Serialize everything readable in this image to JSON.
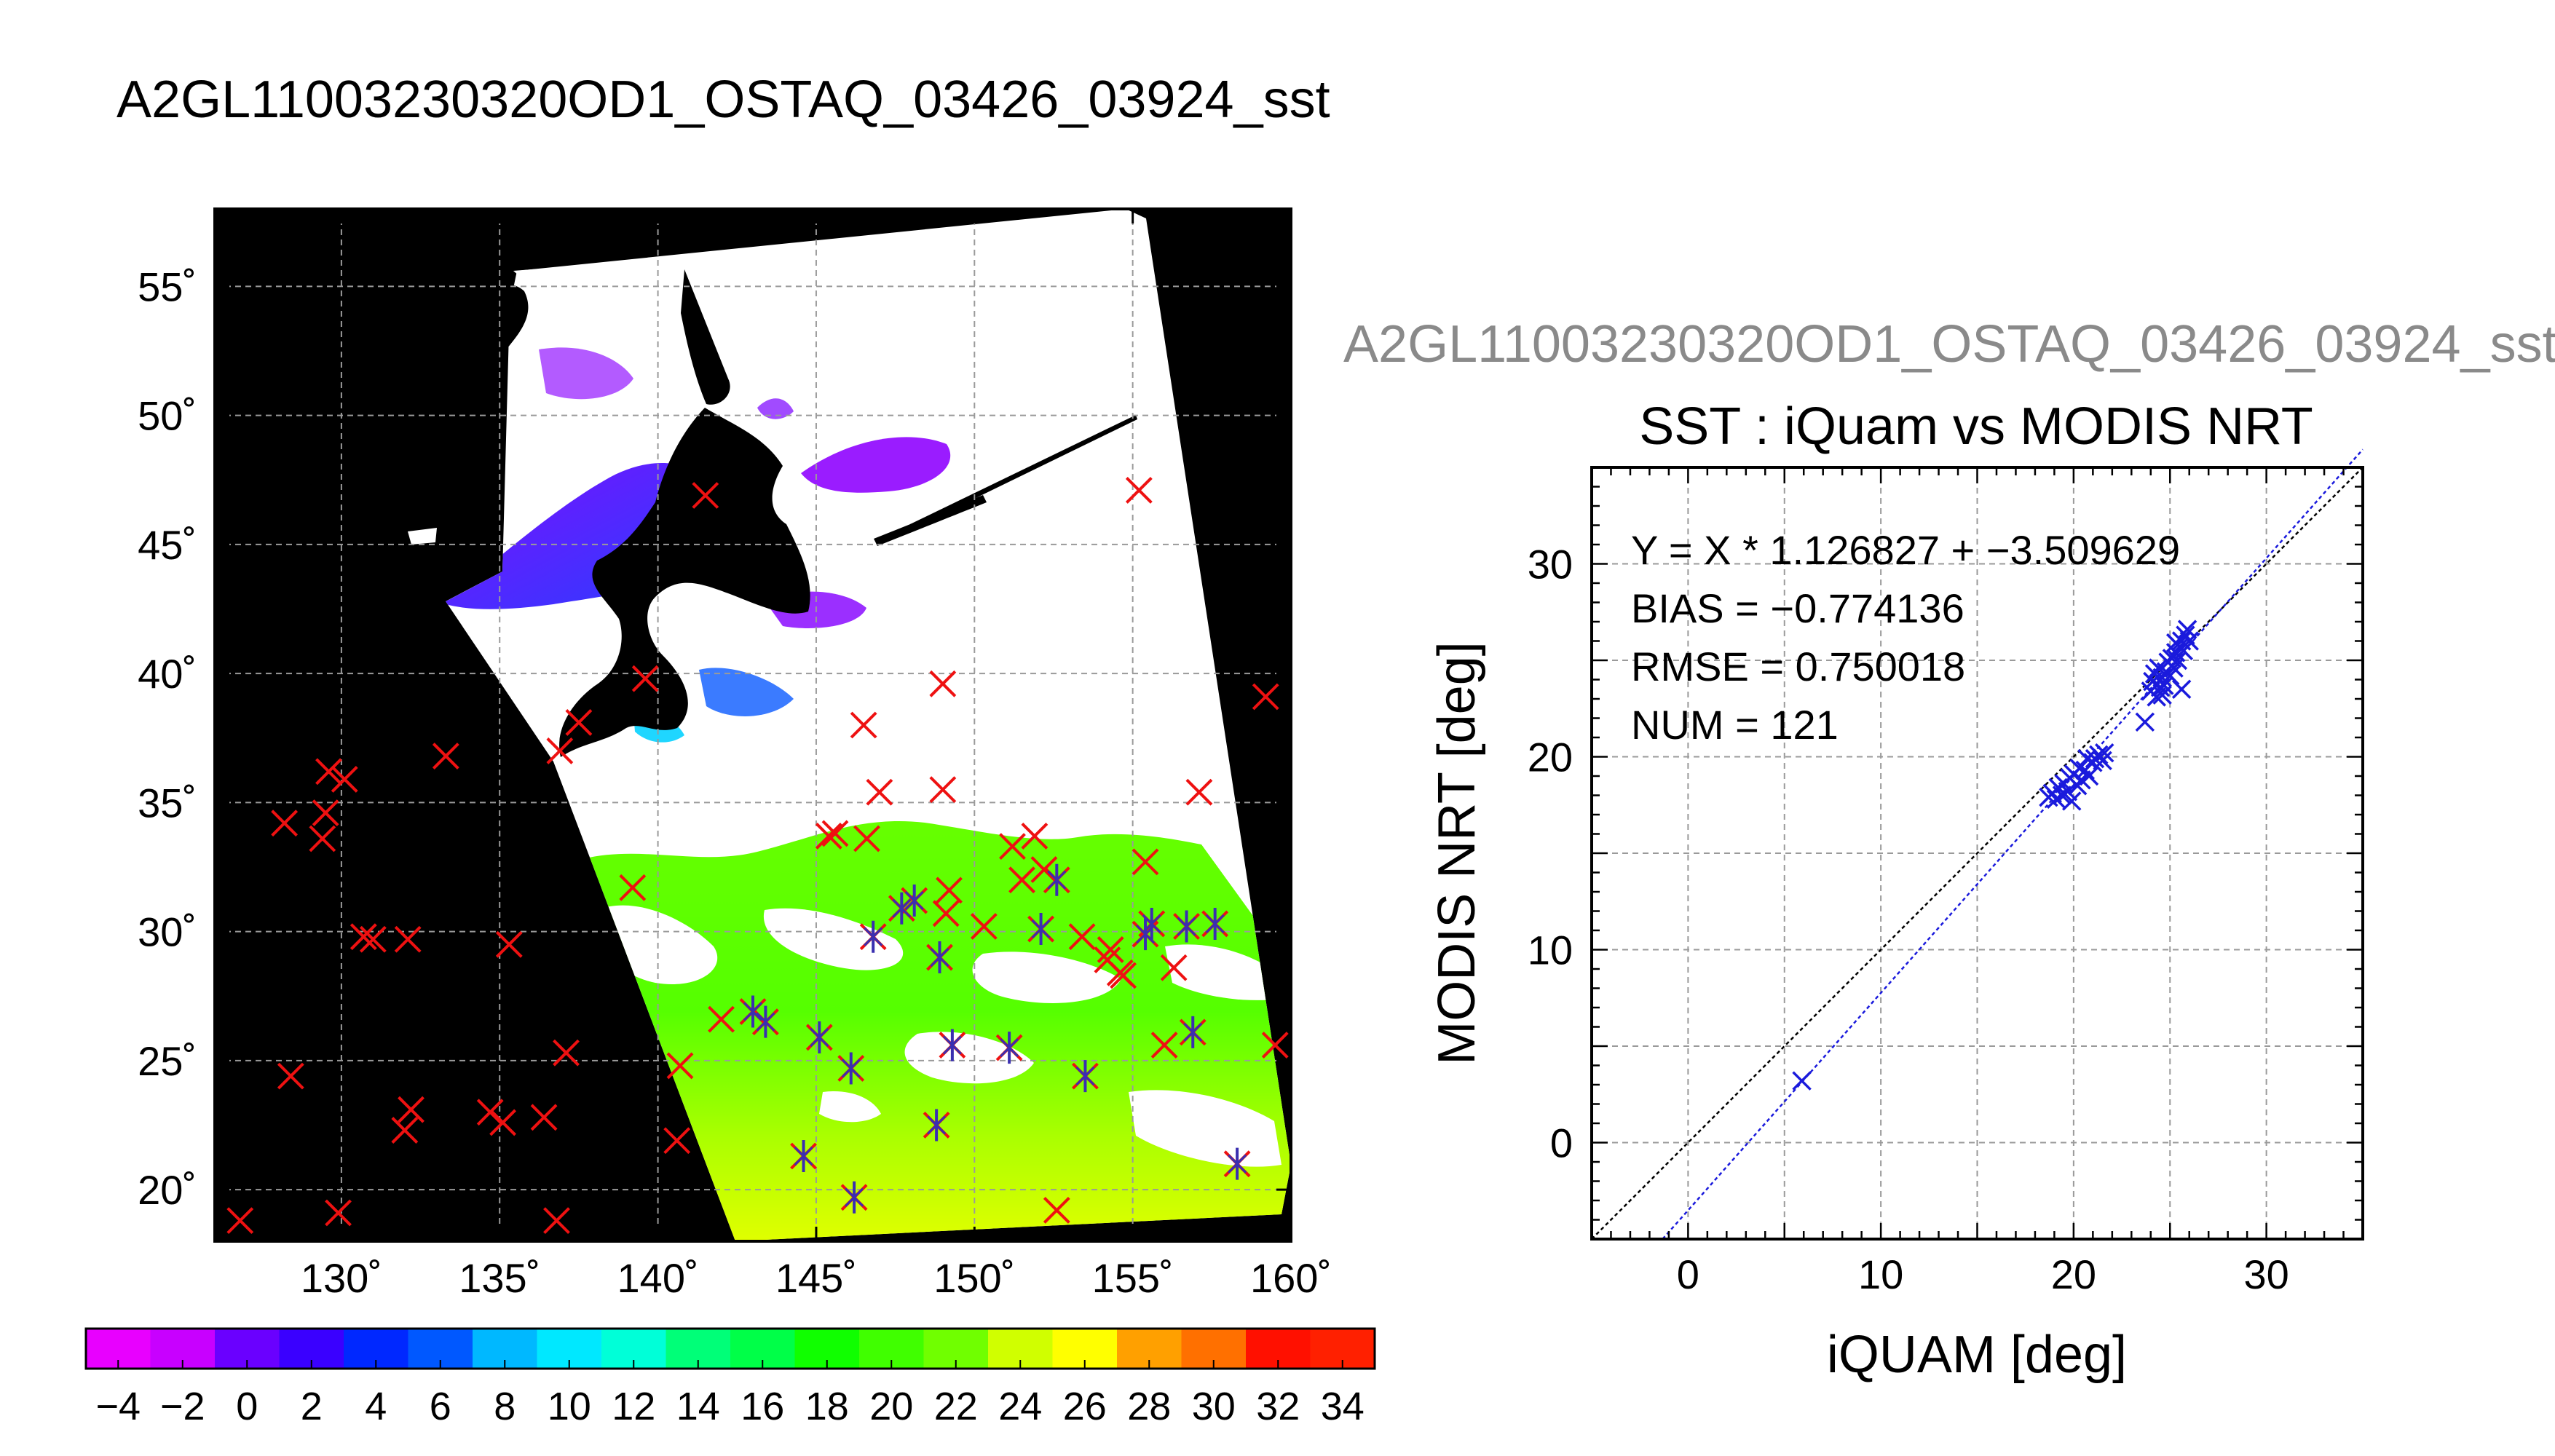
{
  "page_title": "A2GL11003230320OD1_OSTAQ_03426_03924_sst",
  "chart_data": [
    {
      "type": "map",
      "title": "",
      "xlim": [
        126,
        160
      ],
      "ylim": [
        18,
        58
      ],
      "x_ticks": [
        130,
        135,
        140,
        145,
        150,
        155,
        160
      ],
      "x_tick_labels": [
        "130˚",
        "135˚",
        "140˚",
        "145˚",
        "150˚",
        "155˚",
        "160˚"
      ],
      "y_ticks": [
        20,
        25,
        30,
        35,
        40,
        45,
        50,
        55
      ],
      "y_tick_labels": [
        "20˚",
        "25˚",
        "30˚",
        "35˚",
        "40˚",
        "45˚",
        "50˚",
        "55˚"
      ],
      "grid": true,
      "background_color": "#000000",
      "marker_colors": {
        "iquam": "#ee1111",
        "matched": "#3a2fb0"
      },
      "iquam_points": [
        [
          126.8,
          18.8
        ],
        [
          128.2,
          34.2
        ],
        [
          128.4,
          24.4
        ],
        [
          129.4,
          33.6
        ],
        [
          129.5,
          34.6
        ],
        [
          129.6,
          36.2
        ],
        [
          129.9,
          19.1
        ],
        [
          130.1,
          35.9
        ],
        [
          130.7,
          29.8
        ],
        [
          131.0,
          29.7
        ],
        [
          132.0,
          22.3
        ],
        [
          132.2,
          23.1
        ],
        [
          132.1,
          29.7
        ],
        [
          133.3,
          36.8
        ],
        [
          134.7,
          23.0
        ],
        [
          135.1,
          22.6
        ],
        [
          135.3,
          29.5
        ],
        [
          136.4,
          22.8
        ],
        [
          136.8,
          18.8
        ],
        [
          136.9,
          37.0
        ],
        [
          137.1,
          25.3
        ],
        [
          137.5,
          38.1
        ],
        [
          139.2,
          31.7
        ],
        [
          139.6,
          39.8
        ],
        [
          140.6,
          21.9
        ],
        [
          140.7,
          24.8
        ],
        [
          141.5,
          46.9
        ],
        [
          142.0,
          26.6
        ],
        [
          143.0,
          26.9
        ],
        [
          143.4,
          26.5
        ],
        [
          144.6,
          21.3
        ],
        [
          145.1,
          25.9
        ],
        [
          145.4,
          33.7
        ],
        [
          145.6,
          33.8
        ],
        [
          146.1,
          24.7
        ],
        [
          146.2,
          19.7
        ],
        [
          146.5,
          38.0
        ],
        [
          146.6,
          33.6
        ],
        [
          146.8,
          29.8
        ],
        [
          147.0,
          35.4
        ],
        [
          147.7,
          30.9
        ],
        [
          148.1,
          31.2
        ],
        [
          148.8,
          22.5
        ],
        [
          148.9,
          29.0
        ],
        [
          149.0,
          39.6
        ],
        [
          149.0,
          35.5
        ],
        [
          149.1,
          30.7
        ],
        [
          149.2,
          31.6
        ],
        [
          149.3,
          25.6
        ],
        [
          150.3,
          30.2
        ],
        [
          151.1,
          25.5
        ],
        [
          151.2,
          33.3
        ],
        [
          151.5,
          32.0
        ],
        [
          151.9,
          33.7
        ],
        [
          152.1,
          30.1
        ],
        [
          152.2,
          32.4
        ],
        [
          152.6,
          32.0
        ],
        [
          152.6,
          19.2
        ],
        [
          153.4,
          29.8
        ],
        [
          153.5,
          24.4
        ],
        [
          154.2,
          28.9
        ],
        [
          154.3,
          29.3
        ],
        [
          154.6,
          28.4
        ],
        [
          154.7,
          28.3
        ],
        [
          155.2,
          47.1
        ],
        [
          155.4,
          32.7
        ],
        [
          155.4,
          29.9
        ],
        [
          155.6,
          30.3
        ],
        [
          156.0,
          25.6
        ],
        [
          156.3,
          28.6
        ],
        [
          156.7,
          30.2
        ],
        [
          156.9,
          26.1
        ],
        [
          157.1,
          35.4
        ],
        [
          157.6,
          30.3
        ],
        [
          158.3,
          21.0
        ],
        [
          159.2,
          39.1
        ],
        [
          159.5,
          25.6
        ]
      ],
      "matched_points": [
        [
          143.0,
          26.9
        ],
        [
          143.4,
          26.5
        ],
        [
          144.6,
          21.3
        ],
        [
          145.1,
          25.9
        ],
        [
          146.1,
          24.7
        ],
        [
          146.2,
          19.7
        ],
        [
          146.8,
          29.8
        ],
        [
          147.7,
          30.9
        ],
        [
          148.1,
          31.2
        ],
        [
          148.8,
          22.5
        ],
        [
          148.9,
          29.0
        ],
        [
          149.3,
          25.6
        ],
        [
          151.1,
          25.5
        ],
        [
          152.1,
          30.1
        ],
        [
          152.6,
          32.0
        ],
        [
          153.5,
          24.4
        ],
        [
          155.4,
          29.9
        ],
        [
          155.6,
          30.3
        ],
        [
          156.7,
          30.2
        ],
        [
          156.9,
          26.1
        ],
        [
          157.6,
          30.3
        ],
        [
          158.3,
          21.0
        ]
      ],
      "colorbar": {
        "min": -5,
        "max": 35,
        "tick_labels": [
          "−4",
          "−2",
          "0",
          "2",
          "4",
          "6",
          "8",
          "10",
          "12",
          "14",
          "16",
          "18",
          "20",
          "22",
          "24",
          "26",
          "28",
          "30",
          "32",
          "34"
        ],
        "colors": [
          "#e800ff",
          "#c800ff",
          "#9a00ff",
          "#6a00ff",
          "#3a00ff",
          "#0a00ff",
          "#0028ff",
          "#0058ff",
          "#0088ff",
          "#00b8ff",
          "#00e8ff",
          "#00ffd8",
          "#00ffa8",
          "#00ff78",
          "#00ff48",
          "#00ff18",
          "#10ff00",
          "#40ff00",
          "#70ff00",
          "#a0ff00",
          "#d0ff00",
          "#ffff00",
          "#ffd000",
          "#ffa000",
          "#ff7000",
          "#ff4000",
          "#ff1000",
          "#ff2000",
          "#ff0000",
          "#ff0000",
          "#ff0000",
          "#ff0000",
          "#ff0000",
          "#ff0000",
          "#ff0000",
          "#ff0000",
          "#ff0000",
          "#ff0000",
          "#ff0000",
          "#ff0000"
        ]
      }
    },
    {
      "type": "scatter",
      "title": "SST : iQuam vs MODIS NRT",
      "subtitle": "A2GL11003230320OD1_OSTAQ_03426_03924_sst",
      "xlabel": "iQUAM [deg]",
      "ylabel": "MODIS NRT [deg]",
      "xlim": [
        -5,
        35
      ],
      "ylim": [
        -5,
        35
      ],
      "x_ticks": [
        0,
        10,
        20,
        30
      ],
      "y_ticks": [
        0,
        10,
        20,
        30
      ],
      "grid": true,
      "stats": [
        "Y = X * 1.126827 + −3.509629",
        "BIAS = −0.774136",
        "RMSE = 0.750018",
        "NUM = 121"
      ],
      "fit": {
        "slope": 1.126827,
        "intercept": -3.509629
      },
      "marker_color": "#1a1adc",
      "points": [
        [
          5.9,
          3.2
        ],
        [
          18.7,
          17.9
        ],
        [
          18.9,
          18.1
        ],
        [
          19.1,
          17.8
        ],
        [
          19.2,
          18.4
        ],
        [
          19.4,
          18.0
        ],
        [
          19.5,
          18.6
        ],
        [
          19.7,
          18.2
        ],
        [
          19.8,
          18.9
        ],
        [
          19.9,
          17.7
        ],
        [
          20.0,
          19.1
        ],
        [
          20.2,
          18.5
        ],
        [
          20.3,
          19.4
        ],
        [
          20.4,
          18.8
        ],
        [
          20.6,
          19.3
        ],
        [
          20.8,
          19.0
        ],
        [
          21.0,
          19.7
        ],
        [
          21.1,
          19.9
        ],
        [
          21.3,
          20.1
        ],
        [
          21.5,
          19.8
        ],
        [
          21.6,
          20.2
        ],
        [
          20.7,
          19.9
        ],
        [
          23.7,
          21.8
        ],
        [
          24.0,
          23.4
        ],
        [
          24.1,
          23.9
        ],
        [
          24.2,
          24.3
        ],
        [
          24.3,
          23.1
        ],
        [
          24.4,
          24.6
        ],
        [
          24.5,
          23.6
        ],
        [
          24.6,
          24.1
        ],
        [
          24.7,
          23.7
        ],
        [
          24.8,
          24.4
        ],
        [
          24.9,
          24.9
        ],
        [
          25.0,
          24.2
        ],
        [
          25.1,
          25.1
        ],
        [
          25.2,
          24.6
        ],
        [
          25.3,
          25.4
        ],
        [
          25.4,
          25.0
        ],
        [
          25.5,
          25.7
        ],
        [
          25.6,
          26.0
        ],
        [
          25.7,
          25.5
        ],
        [
          25.8,
          26.3
        ],
        [
          25.9,
          26.6
        ],
        [
          26.0,
          26.0
        ],
        [
          25.6,
          23.5
        ],
        [
          24.6,
          23.2
        ],
        [
          25.3,
          25.9
        ]
      ]
    }
  ]
}
